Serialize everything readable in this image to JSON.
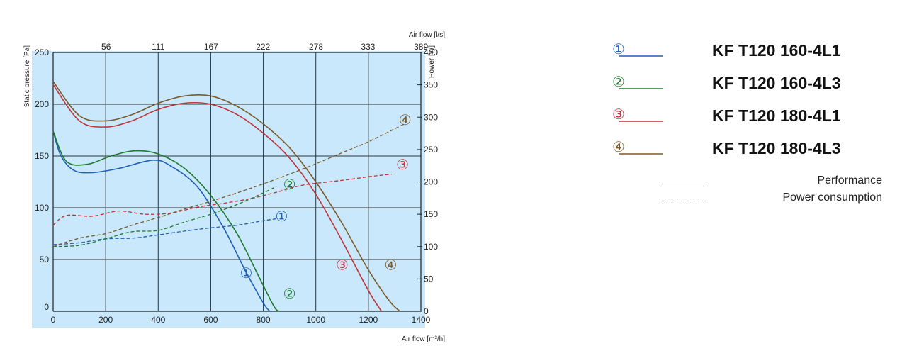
{
  "chart_data": {
    "type": "line",
    "xlabel": "Air flow [m³/h]",
    "ylabel": "Static pressure [Pa]",
    "x2label": "Air flow [l/s]",
    "y2label": "Power [W]",
    "xlim": [
      0,
      1400
    ],
    "ylim": [
      0,
      250
    ],
    "y2lim": [
      0,
      400
    ],
    "x_ticks": [
      0,
      200,
      400,
      600,
      800,
      1000,
      1200,
      1400
    ],
    "y_ticks": [
      0,
      50,
      100,
      150,
      200,
      250
    ],
    "x2_ticks": [
      0,
      56,
      111,
      167,
      222,
      278,
      333,
      389
    ],
    "x2_tick_labels": [
      "",
      "56",
      "111",
      "167",
      "222",
      "278",
      "333",
      "389"
    ],
    "y2_ticks": [
      0,
      50,
      100,
      150,
      200,
      250,
      300,
      350,
      400
    ],
    "grid": true,
    "background": "#c9e8fb",
    "legend_position": "right",
    "series": [
      {
        "id": "1",
        "marker": "①",
        "name": "KF T120 160-4L1",
        "color": "#1f5fb5",
        "performance": [
          [
            0,
            174
          ],
          [
            30,
            150
          ],
          [
            80,
            136
          ],
          [
            150,
            134
          ],
          [
            250,
            138
          ],
          [
            380,
            146
          ],
          [
            450,
            140
          ],
          [
            550,
            120
          ],
          [
            650,
            80
          ],
          [
            730,
            40
          ],
          [
            800,
            8
          ],
          [
            825,
            0
          ]
        ],
        "power": [
          [
            0,
            103
          ],
          [
            100,
            106
          ],
          [
            200,
            112
          ],
          [
            300,
            113
          ],
          [
            400,
            118
          ],
          [
            500,
            124
          ],
          [
            600,
            129
          ],
          [
            700,
            133
          ],
          [
            800,
            140
          ],
          [
            850,
            143
          ]
        ],
        "performance_marker_at": [
          735,
          37
        ],
        "power_marker_at": [
          870,
          147
        ]
      },
      {
        "id": "2",
        "marker": "②",
        "name": "KF T120 160-4L3",
        "color": "#1e7a30",
        "performance": [
          [
            0,
            174
          ],
          [
            50,
            145
          ],
          [
            130,
            142
          ],
          [
            220,
            150
          ],
          [
            310,
            155
          ],
          [
            400,
            152
          ],
          [
            500,
            138
          ],
          [
            600,
            112
          ],
          [
            700,
            75
          ],
          [
            780,
            35
          ],
          [
            840,
            5
          ],
          [
            860,
            0
          ]
        ],
        "power": [
          [
            0,
            100
          ],
          [
            100,
            102
          ],
          [
            200,
            112
          ],
          [
            300,
            123
          ],
          [
            400,
            125
          ],
          [
            500,
            138
          ],
          [
            600,
            150
          ],
          [
            700,
            165
          ],
          [
            800,
            183
          ],
          [
            850,
            193
          ]
        ],
        "performance_marker_at": [
          900,
          17
        ],
        "power_marker_at": [
          900,
          196
        ]
      },
      {
        "id": "3",
        "marker": "③",
        "name": "KF T120 180-4L1",
        "color": "#c0313a",
        "performance": [
          [
            0,
            219
          ],
          [
            100,
            184
          ],
          [
            200,
            178
          ],
          [
            300,
            184
          ],
          [
            400,
            195
          ],
          [
            500,
            201
          ],
          [
            600,
            200
          ],
          [
            700,
            190
          ],
          [
            800,
            172
          ],
          [
            900,
            148
          ],
          [
            1000,
            113
          ],
          [
            1100,
            68
          ],
          [
            1200,
            20
          ],
          [
            1250,
            0
          ]
        ],
        "power": [
          [
            0,
            133
          ],
          [
            50,
            148
          ],
          [
            150,
            147
          ],
          [
            250,
            155
          ],
          [
            350,
            150
          ],
          [
            450,
            152
          ],
          [
            550,
            161
          ],
          [
            650,
            167
          ],
          [
            750,
            174
          ],
          [
            850,
            184
          ],
          [
            950,
            195
          ],
          [
            1050,
            200
          ],
          [
            1150,
            205
          ],
          [
            1200,
            208
          ],
          [
            1290,
            212
          ]
        ],
        "performance_marker_at": [
          1100,
          45
        ],
        "power_marker_at": [
          1330,
          227
        ]
      },
      {
        "id": "4",
        "marker": "④",
        "name": "KF T120 180-4L3",
        "color": "#7a5a2c",
        "performance": [
          [
            0,
            222
          ],
          [
            100,
            189
          ],
          [
            200,
            184
          ],
          [
            300,
            190
          ],
          [
            400,
            201
          ],
          [
            500,
            208
          ],
          [
            600,
            208
          ],
          [
            700,
            198
          ],
          [
            800,
            181
          ],
          [
            900,
            158
          ],
          [
            1000,
            125
          ],
          [
            1100,
            85
          ],
          [
            1200,
            40
          ],
          [
            1280,
            10
          ],
          [
            1320,
            0
          ]
        ],
        "power": [
          [
            0,
            100
          ],
          [
            100,
            113
          ],
          [
            200,
            120
          ],
          [
            300,
            133
          ],
          [
            400,
            145
          ],
          [
            500,
            158
          ],
          [
            600,
            170
          ],
          [
            700,
            183
          ],
          [
            800,
            197
          ],
          [
            900,
            212
          ],
          [
            1000,
            228
          ],
          [
            1100,
            245
          ],
          [
            1200,
            262
          ],
          [
            1300,
            282
          ],
          [
            1340,
            290
          ]
        ],
        "performance_marker_at": [
          1285,
          45
        ],
        "power_marker_at": [
          1340,
          296
        ]
      }
    ]
  },
  "legend": {
    "items": [
      {
        "marker": "①",
        "name": "KF T120 160-4L1",
        "color": "#1f5fb5"
      },
      {
        "marker": "②",
        "name": "KF T120 160-4L3",
        "color": "#1e7a30"
      },
      {
        "marker": "③",
        "name": "KF T120 180-4L1",
        "color": "#c0313a"
      },
      {
        "marker": "④",
        "name": "KF T120 180-4L3",
        "color": "#7a5a2c"
      }
    ],
    "line_styles": [
      {
        "style": "solid",
        "label": "Performance"
      },
      {
        "style": "dashed",
        "label": "Power consumption"
      }
    ]
  }
}
